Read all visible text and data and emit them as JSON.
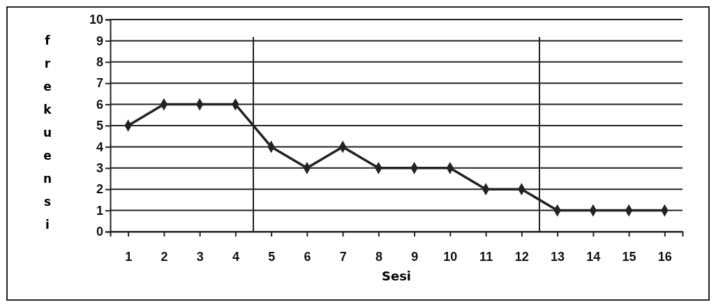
{
  "chart_data": {
    "type": "line",
    "xlabel": "Sesi",
    "ylabel": "frekuensi",
    "x": [
      1,
      2,
      3,
      4,
      5,
      6,
      7,
      8,
      9,
      10,
      11,
      12,
      13,
      14,
      15,
      16
    ],
    "xlim": [
      0.5,
      16.5
    ],
    "xticks": [
      1,
      2,
      3,
      4,
      5,
      6,
      7,
      8,
      9,
      10,
      11,
      12,
      13,
      14,
      15,
      16
    ],
    "ylim": [
      0,
      10
    ],
    "yticks": [
      0,
      1,
      2,
      3,
      4,
      5,
      6,
      7,
      8,
      9,
      10
    ],
    "series": [
      {
        "color": "#222222",
        "values": [
          5,
          6,
          6,
          6,
          4,
          3,
          4,
          3,
          3,
          3,
          2,
          2,
          1,
          1,
          1,
          1
        ]
      }
    ],
    "ref_lines": [
      {
        "axis": "x",
        "value": 4.5,
        "color": "#222222"
      },
      {
        "axis": "x",
        "value": 12.5,
        "color": "#222222"
      }
    ],
    "grid": "y",
    "marker": "diamond",
    "line_style": "solid"
  }
}
